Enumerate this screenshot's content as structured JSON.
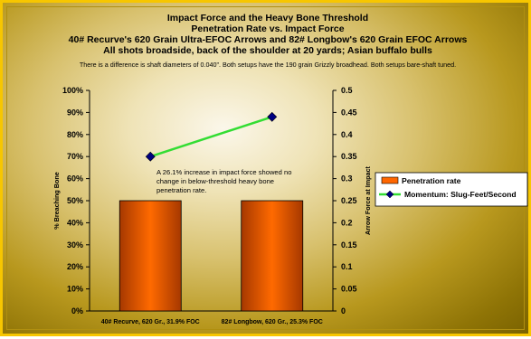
{
  "chart_data": {
    "type": "bar",
    "title_lines": [
      "Impact Force and the Heavy Bone Threshold",
      "Penetration Rate vs. Impact Force",
      "40# Recurve's 620 Grain Ultra-EFOC Arrows and 82# Longbow's 620 Grain EFOC Arrows",
      "All shots broadside, back of the shoulder at 20 yards; Asian buffalo bulls"
    ],
    "subtitle": "There is a difference is shaft diameters of 0.040\". Both setups have the 190 grain Grizzly broadhead. Both setups bare-shaft tuned.",
    "categories": [
      "40# Recurve, 620 Gr., 31.9% FOC",
      "82# Longbow, 620 Gr., 25.3% FOC"
    ],
    "ylabel": "% Breaching Bone",
    "y2label": "Arrow Force at Impact",
    "ylim": [
      0,
      1.0
    ],
    "y2lim": [
      0,
      0.5
    ],
    "y_ticks": [
      "0%",
      "10%",
      "20%",
      "30%",
      "40%",
      "50%",
      "60%",
      "70%",
      "80%",
      "90%",
      "100%"
    ],
    "y2_ticks": [
      "0",
      "0.05",
      "0.1",
      "0.15",
      "0.2",
      "0.25",
      "0.3",
      "0.35",
      "0.4",
      "0.45",
      "0.5"
    ],
    "series": [
      {
        "name": "Penetration rate",
        "kind": "bar",
        "axis": "left",
        "values": [
          0.5,
          0.5
        ],
        "color": "#ff6600"
      },
      {
        "name": "Momentum: Slug-Feet/Second",
        "kind": "line",
        "axis": "right",
        "values": [
          0.35,
          0.44
        ],
        "color": "#33dd33",
        "marker_color": "#000080"
      }
    ],
    "annotation": [
      "A 26.1% increase in impact force showed no",
      "change in below-threshold heavy bone",
      "penetration rate."
    ],
    "legend_position": "right"
  }
}
